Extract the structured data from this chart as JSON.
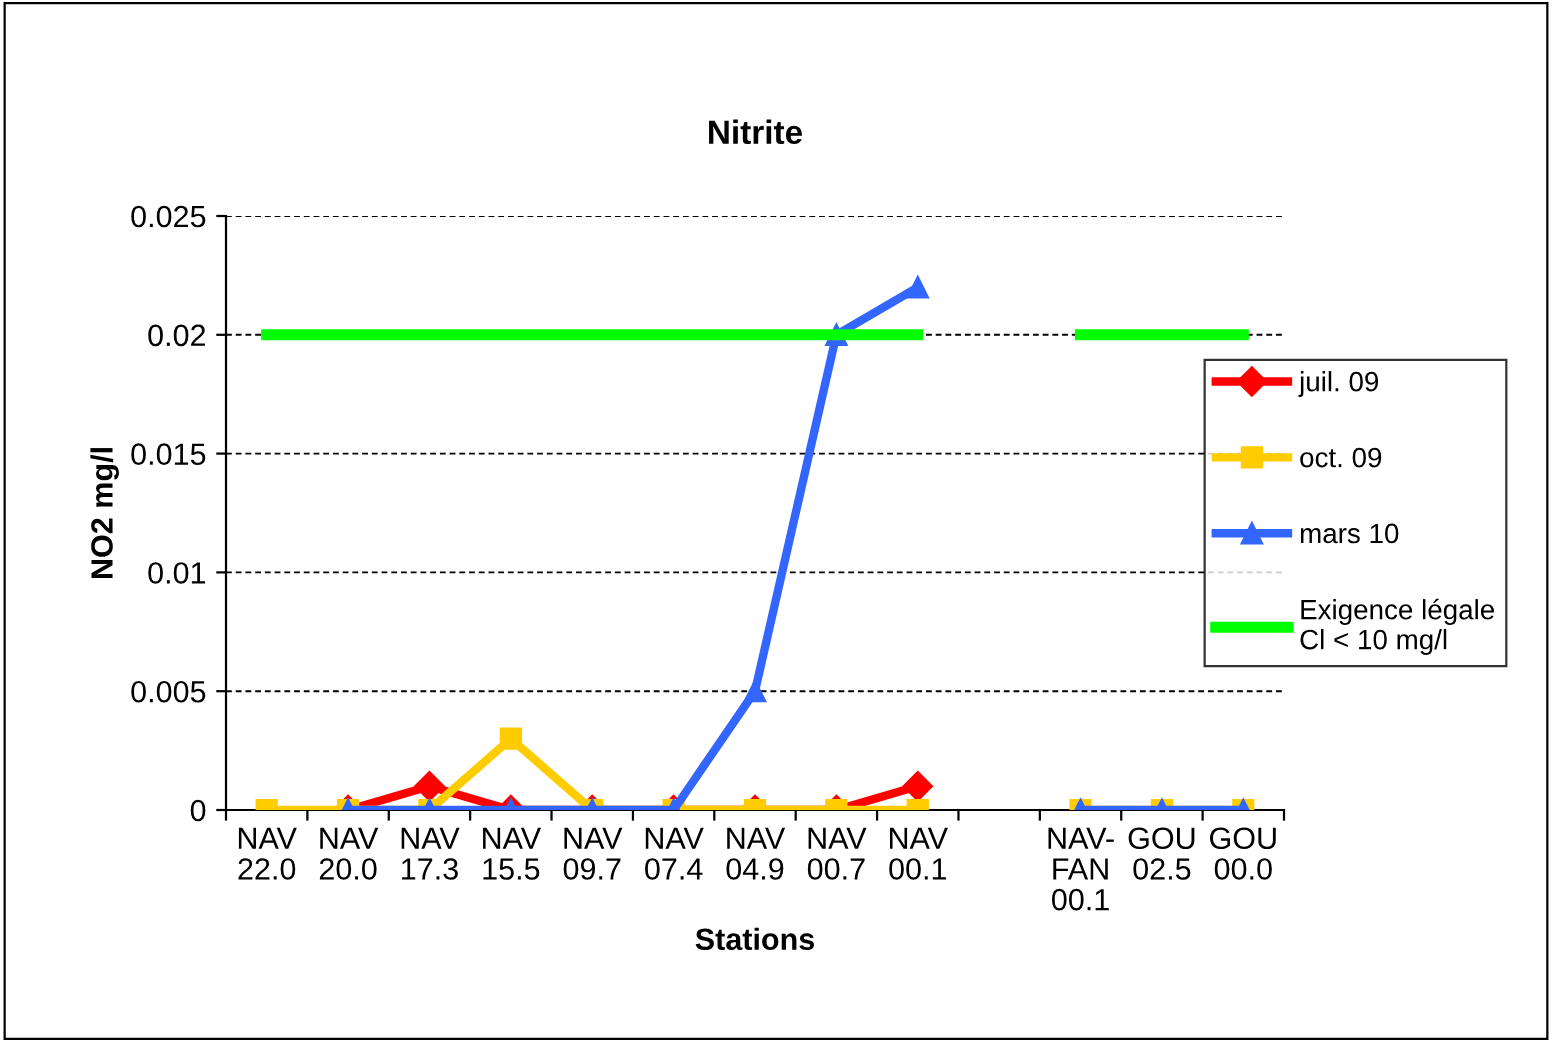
{
  "chart_data": {
    "type": "line",
    "title": "Nitrite",
    "xlabel": "Stations",
    "ylabel": "NO2 mg/l",
    "categories": [
      "NAV\n22.0",
      "NAV\n20.0",
      "NAV\n17.3",
      "NAV\n15.5",
      "NAV\n09.7",
      "NAV\n07.4",
      "NAV\n04.9",
      "NAV\n00.7",
      "NAV\n00.1",
      null,
      "NAV-\nFAN\n00.1",
      "GOU\n02.5",
      "GOU\n00.0"
    ],
    "series": [
      {
        "name": "juil. 09",
        "color": "#ff0000",
        "marker": "diamond",
        "values": [
          null,
          0,
          0.001,
          0,
          0,
          0,
          0,
          0,
          0.001,
          null,
          null,
          null,
          null
        ]
      },
      {
        "name": "oct. 09",
        "color": "#ffcc00",
        "marker": "square",
        "values": [
          0,
          0,
          0,
          0.003,
          0,
          0,
          0,
          0,
          0,
          null,
          0,
          0,
          0
        ]
      },
      {
        "name": "mars 10",
        "color": "#3366ff",
        "marker": "triangle",
        "values": [
          null,
          0,
          0,
          0,
          0,
          0,
          0.005,
          0.02,
          0.022,
          null,
          0,
          0,
          0
        ]
      },
      {
        "name": "Exigence légale\nCl < 10 mg/l",
        "color": "#00ff00",
        "marker": "none",
        "values": [
          0.02,
          0.02,
          0.02,
          0.02,
          0.02,
          0.02,
          0.02,
          0.02,
          0.02,
          null,
          0.02,
          0.02,
          0.02
        ]
      }
    ],
    "ylim": [
      0,
      0.025
    ],
    "yticks": [
      0,
      0.005,
      0.01,
      0.015,
      0.02,
      0.025
    ],
    "grid": "y",
    "legend": "right"
  }
}
